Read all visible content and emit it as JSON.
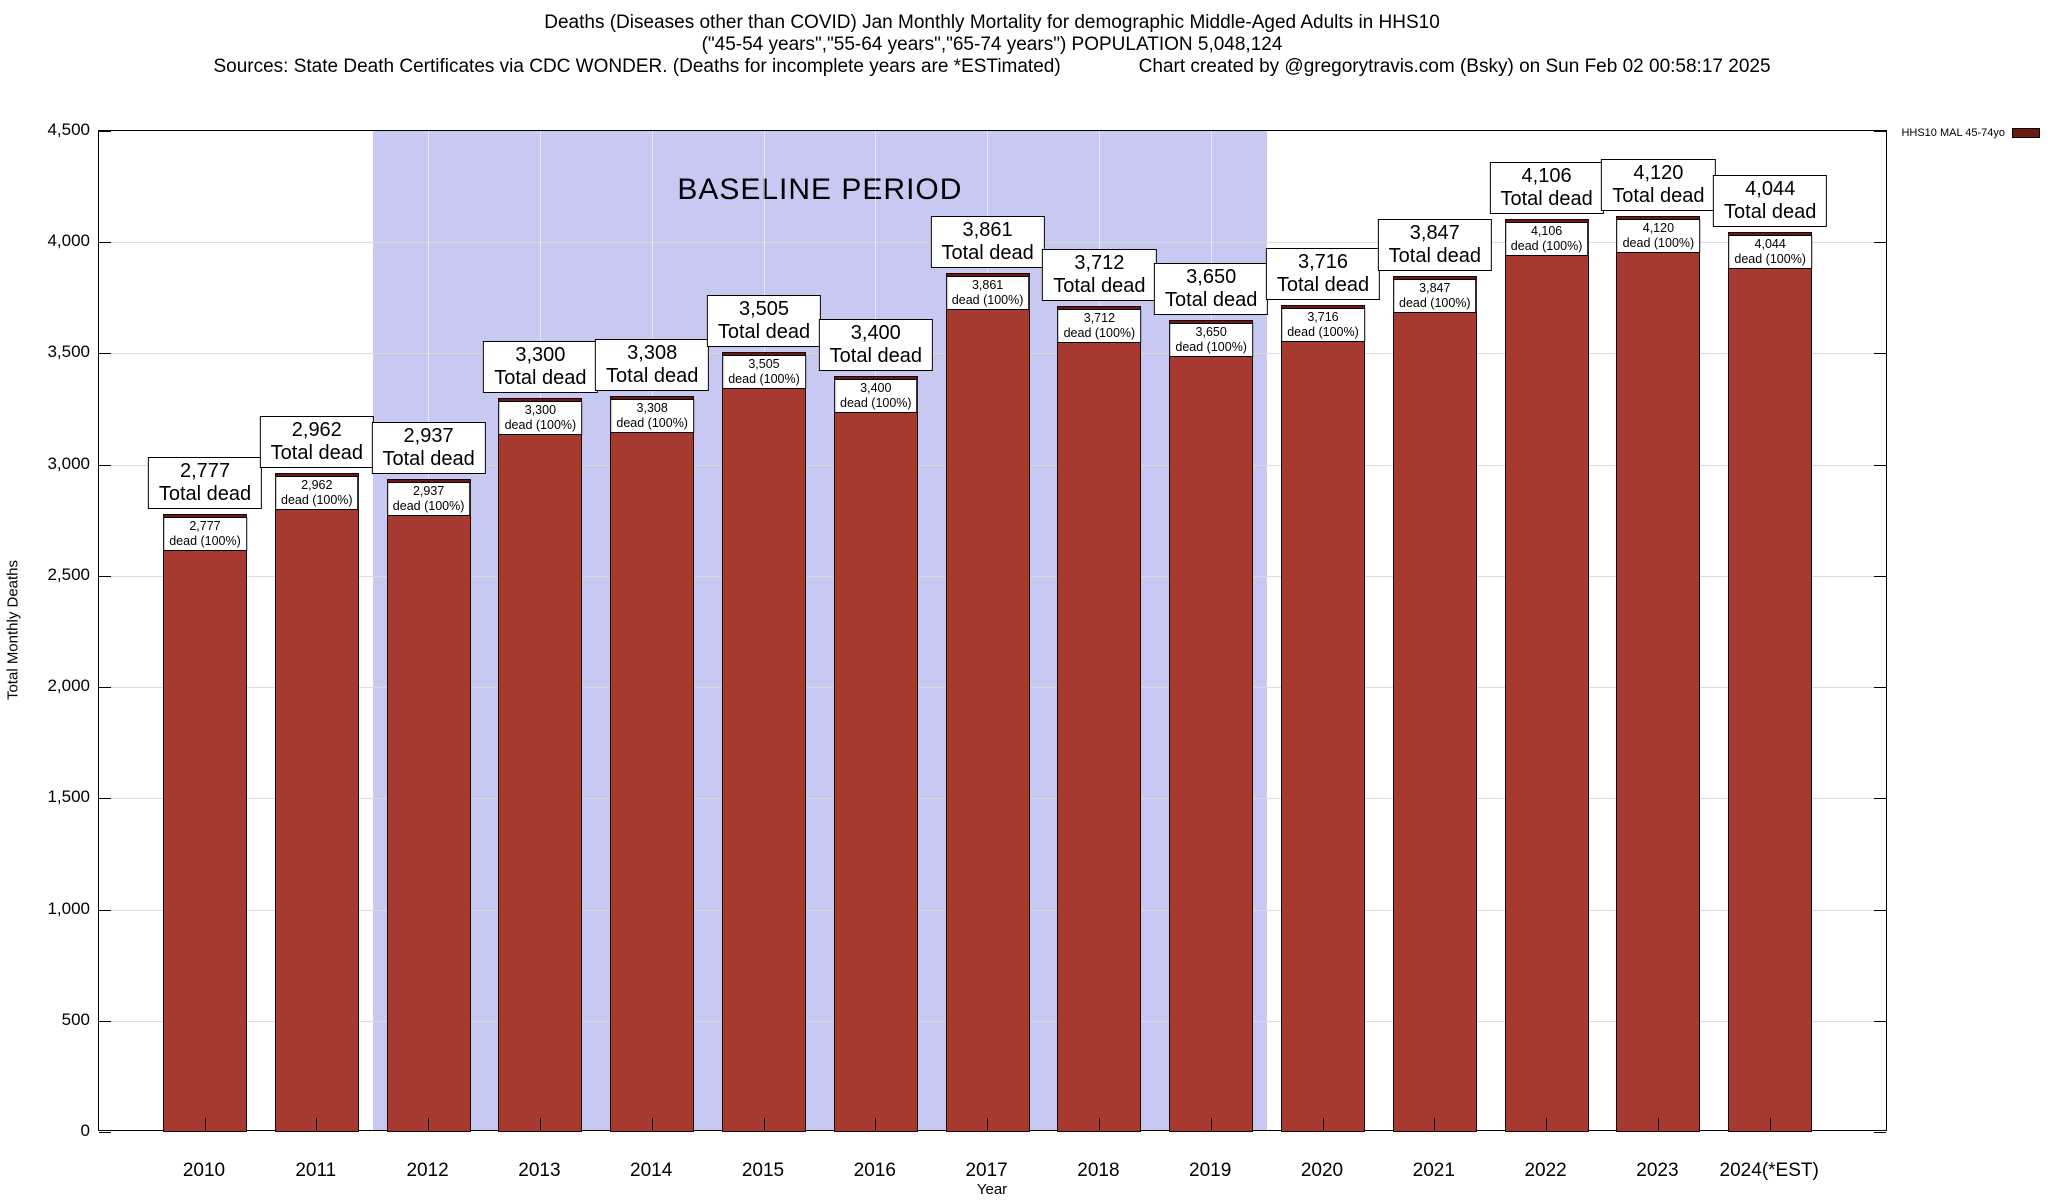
{
  "header": {
    "line1": "Deaths (Diseases other than COVID) Jan Monthly Mortality for demographic Middle-Aged Adults in HHS10",
    "line2": "(\"45-54 years\",\"55-64 years\",\"65-74 years\") POPULATION 5,048,124",
    "sources": "Sources: State Death Certificates via CDC WONDER. (Deaths for incomplete years are *ESTimated)",
    "credit": "Chart created by @gregorytravis.com (Bsky) on Sun Feb 02 00:58:17 2025"
  },
  "legend": {
    "label": "HHS10 MAL 45-74yo"
  },
  "axes": {
    "y_label": "Total Monthly Deaths",
    "x_label": "Year",
    "y_ticks": [
      "0",
      "500",
      "1,000",
      "1,500",
      "2,000",
      "2,500",
      "3,000",
      "3,500",
      "4,000",
      "4,500"
    ]
  },
  "colors": {
    "bar_fill": "#a63a30",
    "bar_cap": "#6e1813",
    "baseline_band": "#c8c9f3",
    "grid": "#dcdcdc"
  },
  "chart_data": {
    "type": "bar",
    "title": "Deaths (Diseases other than COVID) Jan Monthly Mortality for demographic Middle-Aged Adults in HHS10",
    "subtitle": "(\"45-54 years\",\"55-64 years\",\"65-74 years\") POPULATION 5,048,124",
    "series_name": "HHS10 MAL 45-74yo",
    "xlabel": "Year",
    "ylabel": "Total Monthly Deaths",
    "ylim": [
      0,
      4500
    ],
    "grid": true,
    "legend_position": "top-right",
    "categories": [
      "2010",
      "2011",
      "2012",
      "2013",
      "2014",
      "2015",
      "2016",
      "2017",
      "2018",
      "2019",
      "2020",
      "2021",
      "2022",
      "2023",
      "2024(*EST)"
    ],
    "values": [
      2777,
      2962,
      2937,
      3300,
      3308,
      3505,
      3400,
      3861,
      3712,
      3650,
      3716,
      3847,
      4106,
      4120,
      4044
    ],
    "values_formatted": [
      "2,777",
      "2,962",
      "2,937",
      "3,300",
      "3,308",
      "3,505",
      "3,400",
      "3,861",
      "3,712",
      "3,650",
      "3,716",
      "3,847",
      "4,106",
      "4,120",
      "4,044"
    ],
    "annotations": {
      "total_label": "Total dead",
      "pct_label": "dead (100%)"
    },
    "baseline_period": {
      "label": "BASELINE PERIOD",
      "start": "2012",
      "end": "2019"
    }
  }
}
